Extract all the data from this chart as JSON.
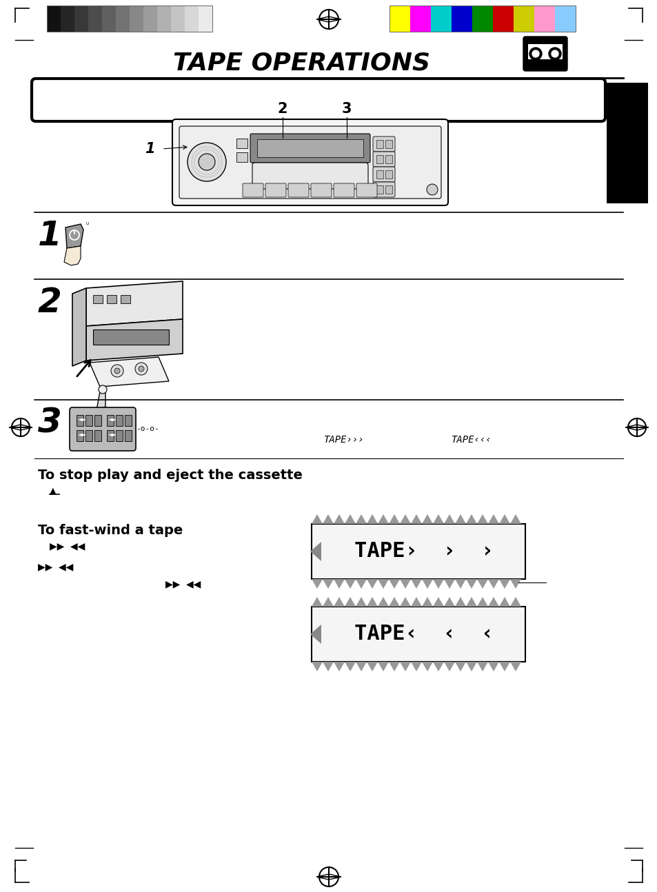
{
  "title": "TAPE OPERATIONS",
  "background_color": "#ffffff",
  "page_width": 9.54,
  "page_height": 12.94,
  "color_bars_left": [
    "#111111",
    "#252525",
    "#383838",
    "#4c4c4c",
    "#606060",
    "#737373",
    "#888888",
    "#9c9c9c",
    "#b0b0b0",
    "#c4c4c4",
    "#d8d8d8",
    "#ebebeb"
  ],
  "color_bars_right": [
    "#ffff00",
    "#ff00ff",
    "#00cccc",
    "#0000cc",
    "#008800",
    "#cc0000",
    "#cccc00",
    "#ff99cc",
    "#88ccff"
  ],
  "step1_label": "1",
  "step2_label": "2",
  "step3_label": "3",
  "tape_display_1_text": "TAPE›››",
  "tape_display_2_text": "TAPE‹‹‹",
  "stop_eject_text": "To stop play and eject the cassette",
  "fast_wind_text": "To fast-wind a tape",
  "section_title_fontsize": 26,
  "step_num_fontsize": 36,
  "body_fontsize": 10,
  "bold_label_fontsize": 14,
  "small_tape_text_1": "TAPE›››",
  "small_tape_text_2": "TAPE‹‹‹",
  "minus_o_text": "-o-o-"
}
